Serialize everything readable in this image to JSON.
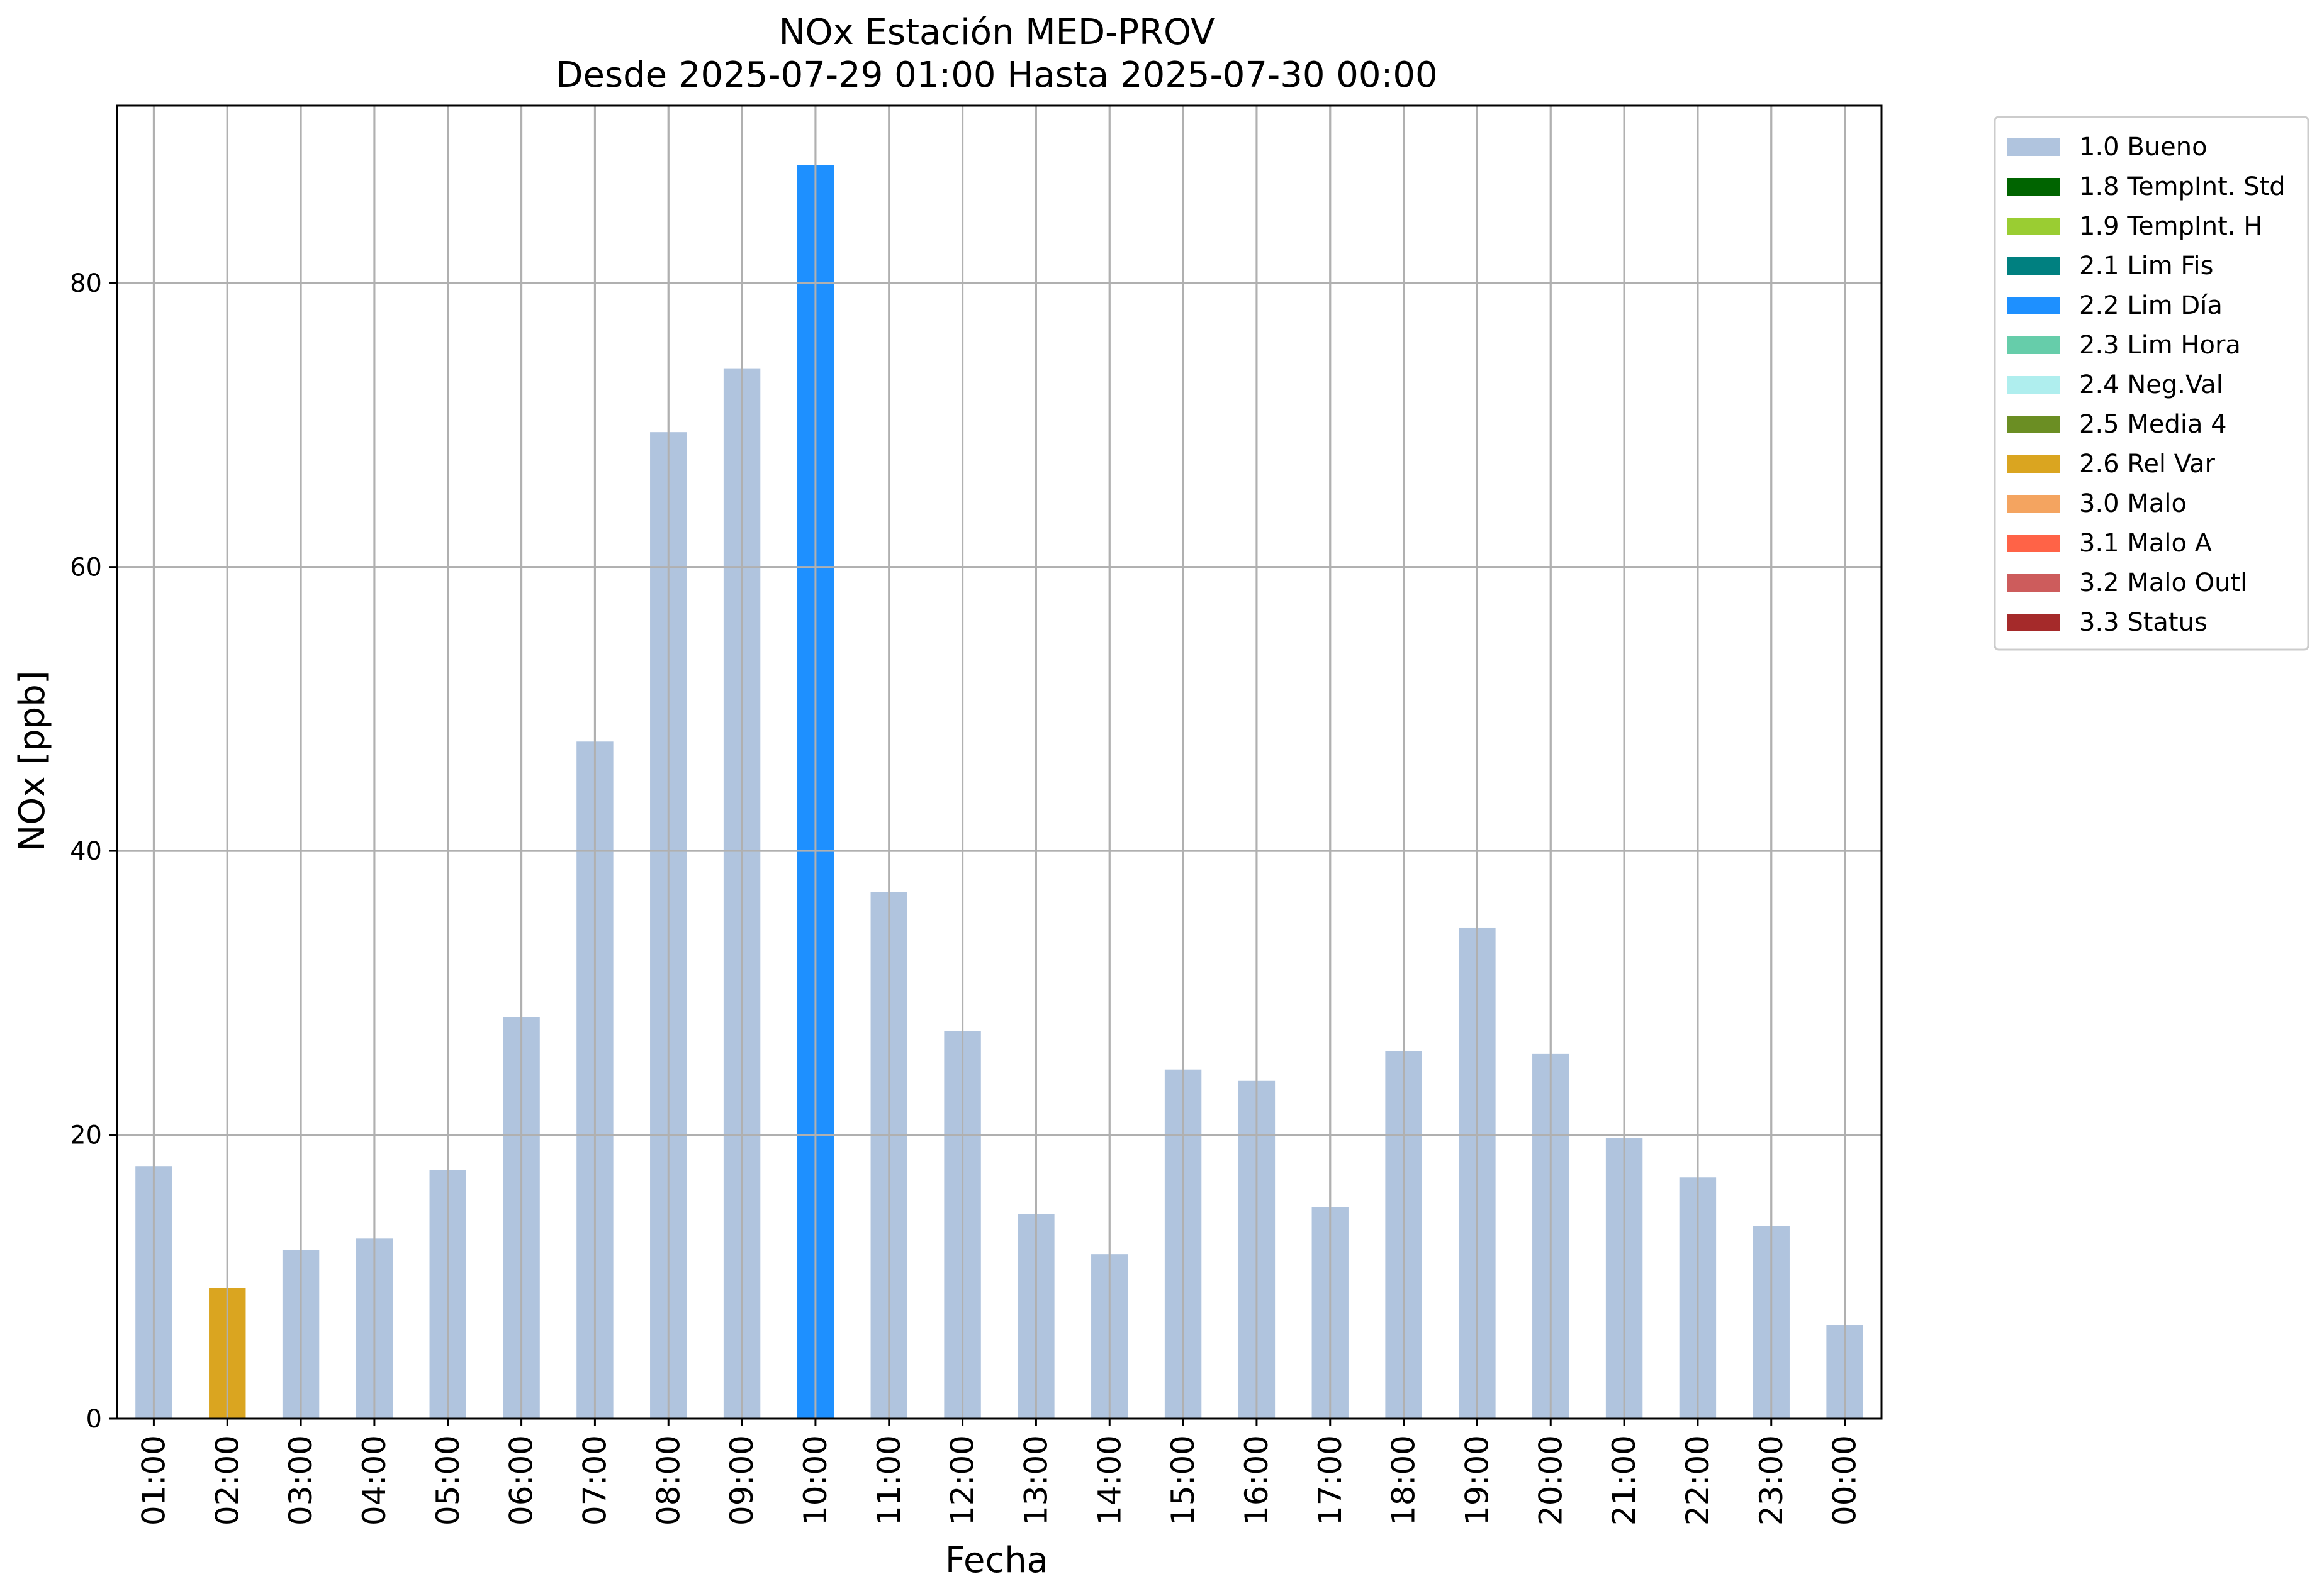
{
  "chart_data": {
    "type": "bar",
    "title": "NOx Estación MED-PROV",
    "subtitle": "Desde 2025-07-29 01:00 Hasta 2025-07-30 00:00",
    "xlabel": "Fecha",
    "ylabel": "NOx [ppb]",
    "ylim": [
      0,
      92.5
    ],
    "yticks": [
      0,
      20,
      40,
      60,
      80
    ],
    "grid": true,
    "legend_position": "outside-top-right",
    "categories": [
      "01:00",
      "02:00",
      "03:00",
      "04:00",
      "05:00",
      "06:00",
      "07:00",
      "08:00",
      "09:00",
      "10:00",
      "11:00",
      "12:00",
      "13:00",
      "14:00",
      "15:00",
      "16:00",
      "17:00",
      "18:00",
      "19:00",
      "20:00",
      "21:00",
      "22:00",
      "23:00",
      "00:00"
    ],
    "values": [
      17.8,
      9.2,
      11.9,
      12.7,
      17.5,
      28.3,
      47.7,
      69.5,
      74.0,
      88.3,
      37.1,
      27.3,
      14.4,
      11.6,
      24.6,
      23.8,
      14.9,
      25.9,
      34.6,
      25.7,
      19.8,
      17.0,
      13.6,
      6.6
    ],
    "flags": [
      "1.0 Bueno",
      "2.6 Rel Var",
      "1.0 Bueno",
      "1.0 Bueno",
      "1.0 Bueno",
      "1.0 Bueno",
      "1.0 Bueno",
      "1.0 Bueno",
      "1.0 Bueno",
      "2.2 Lim Día",
      "1.0 Bueno",
      "1.0 Bueno",
      "1.0 Bueno",
      "1.0 Bueno",
      "1.0 Bueno",
      "1.0 Bueno",
      "1.0 Bueno",
      "1.0 Bueno",
      "1.0 Bueno",
      "1.0 Bueno",
      "1.0 Bueno",
      "1.0 Bueno",
      "1.0 Bueno",
      "1.0 Bueno"
    ],
    "legend": [
      {
        "name": "1.0 Bueno",
        "color": "#b0c4de"
      },
      {
        "name": "1.8 TempInt. Std",
        "color": "#006400"
      },
      {
        "name": "1.9 TempInt. H",
        "color": "#9acd32"
      },
      {
        "name": "2.1 Lim Fis",
        "color": "#008080"
      },
      {
        "name": "2.2 Lim Día",
        "color": "#1e90ff"
      },
      {
        "name": "2.3 Lim Hora",
        "color": "#66cdaa"
      },
      {
        "name": "2.4 Neg.Val",
        "color": "#afeeee"
      },
      {
        "name": "2.5 Media 4",
        "color": "#6b8e23"
      },
      {
        "name": "2.6 Rel Var",
        "color": "#daa520"
      },
      {
        "name": "3.0 Malo",
        "color": "#f4a460"
      },
      {
        "name": "3.1 Malo A",
        "color": "#ff6347"
      },
      {
        "name": "3.2 Malo Outl",
        "color": "#cd5c5c"
      },
      {
        "name": "3.3 Status",
        "color": "#a52a2a"
      }
    ]
  }
}
